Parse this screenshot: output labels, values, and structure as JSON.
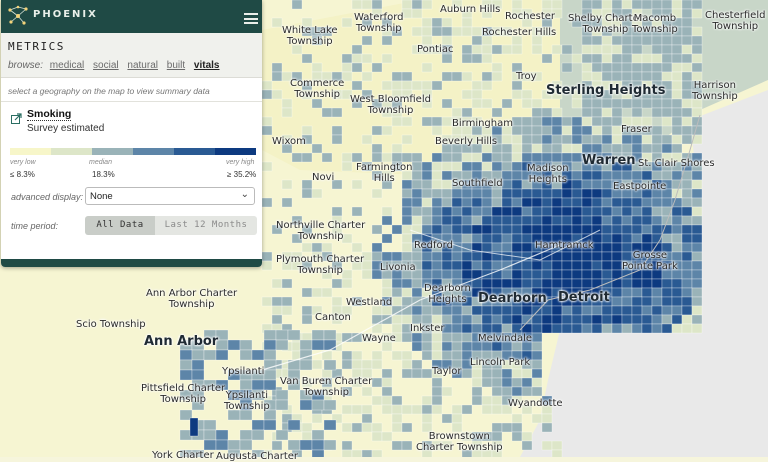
{
  "app": {
    "brand": "PHOENIX"
  },
  "panel": {
    "title": "METRICS",
    "browse_label": "browse:",
    "browse_items": [
      "medical",
      "social",
      "natural",
      "built",
      "vitals"
    ],
    "active_browse": "vitals",
    "hint": "select a geography on the map to view summary data",
    "metric": {
      "name": "Smoking",
      "subtitle": "Survey estimated"
    },
    "legend": {
      "low_label": "very low",
      "median_label": "median",
      "high_label": "very high",
      "low_value": "≤ 8.3%",
      "median_value": "18.3%",
      "high_value": "≥ 35.2%",
      "colors": [
        "#f7f6c9",
        "#dde6c8",
        "#9ab3b8",
        "#5d85a8",
        "#2a5a93",
        "#0d3a80"
      ]
    },
    "advanced_display": {
      "label": "advanced display:",
      "value": "None"
    },
    "time_period": {
      "label": "time period:",
      "options": [
        "All Data",
        "Last 12 Months"
      ],
      "selected": "All Data"
    }
  },
  "map": {
    "places": [
      {
        "name": "Auburn Hills",
        "cls": ""
      },
      {
        "name": "Rochester",
        "cls": ""
      },
      {
        "name": "Shelby Charter\nTownship",
        "cls": ""
      },
      {
        "name": "Macomb\nTownship",
        "cls": ""
      },
      {
        "name": "Chesterfield\nTownship",
        "cls": ""
      },
      {
        "name": "Waterford\nTownship",
        "cls": ""
      },
      {
        "name": "White Lake\nTownship",
        "cls": ""
      },
      {
        "name": "Pontiac",
        "cls": ""
      },
      {
        "name": "Rochester Hills",
        "cls": ""
      },
      {
        "name": "Troy",
        "cls": ""
      },
      {
        "name": "Sterling Heights",
        "cls": "big"
      },
      {
        "name": "Harrison\nTownship",
        "cls": ""
      },
      {
        "name": "Commerce\nTownship",
        "cls": ""
      },
      {
        "name": "West Bloomfield\nTownship",
        "cls": ""
      },
      {
        "name": "Birmingham",
        "cls": ""
      },
      {
        "name": "Fraser",
        "cls": ""
      },
      {
        "name": "Wixom",
        "cls": ""
      },
      {
        "name": "Beverly Hills",
        "cls": ""
      },
      {
        "name": "Warren",
        "cls": "big"
      },
      {
        "name": "St. Clair Shores",
        "cls": ""
      },
      {
        "name": "Farmington\nHills",
        "cls": ""
      },
      {
        "name": "Novi",
        "cls": ""
      },
      {
        "name": "Southfield",
        "cls": ""
      },
      {
        "name": "Madison\nHeights",
        "cls": ""
      },
      {
        "name": "Eastpointe",
        "cls": ""
      },
      {
        "name": "Northville Charter\nTownship",
        "cls": ""
      },
      {
        "name": "Redford",
        "cls": ""
      },
      {
        "name": "Hamtramck",
        "cls": ""
      },
      {
        "name": "Grosse\nPointe Park",
        "cls": ""
      },
      {
        "name": "Plymouth Charter\nTownship",
        "cls": ""
      },
      {
        "name": "Livonia",
        "cls": ""
      },
      {
        "name": "Ann Arbor Charter\nTownship",
        "cls": ""
      },
      {
        "name": "Dearborn\nHeights",
        "cls": ""
      },
      {
        "name": "Dearborn",
        "cls": "big"
      },
      {
        "name": "Detroit",
        "cls": "big"
      },
      {
        "name": "Westland",
        "cls": ""
      },
      {
        "name": "Scio Township",
        "cls": ""
      },
      {
        "name": "Canton",
        "cls": ""
      },
      {
        "name": "Inkster",
        "cls": ""
      },
      {
        "name": "Ann Arbor",
        "cls": "big"
      },
      {
        "name": "Wayne",
        "cls": ""
      },
      {
        "name": "Melvindale",
        "cls": ""
      },
      {
        "name": "Lincoln Park",
        "cls": ""
      },
      {
        "name": "Ypsilanti",
        "cls": ""
      },
      {
        "name": "Taylor",
        "cls": ""
      },
      {
        "name": "Pittsfield Charter\nTownship",
        "cls": ""
      },
      {
        "name": "Van Buren Charter\nTownship",
        "cls": ""
      },
      {
        "name": "Ypsilanti\nTownship",
        "cls": ""
      },
      {
        "name": "Wyandotte",
        "cls": ""
      },
      {
        "name": "Brownstown\nCharter Township",
        "cls": ""
      },
      {
        "name": "York Charter",
        "cls": ""
      },
      {
        "name": "Augusta Charter",
        "cls": ""
      }
    ]
  }
}
